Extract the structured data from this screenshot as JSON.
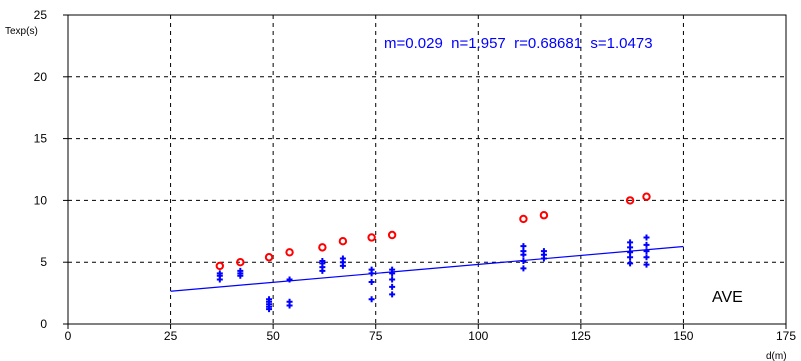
{
  "chart_data": {
    "type": "scatter",
    "title": "",
    "xlabel": "d(m)",
    "ylabel": "Texp(s)",
    "xlim": [
      0,
      175
    ],
    "ylim": [
      0,
      25
    ],
    "xticks": [
      0,
      25,
      50,
      75,
      100,
      125,
      150,
      175
    ],
    "yticks": [
      0,
      5,
      10,
      15,
      20,
      25
    ],
    "grid": "dashed, at every tick",
    "annotation": "m=0.029  n=1.957  r=0.68681  s=1.0473",
    "panel_label": "AVE",
    "colors": {
      "red_series": "#ff0000",
      "blue_series": "#0000ff",
      "fit_line": "#0000ff",
      "annotation": "#0000ff",
      "grid": "#000000"
    },
    "series": [
      {
        "marker": "circle",
        "color": "#ff0000",
        "points": [
          [
            37,
            4.7
          ],
          [
            42,
            5.0
          ],
          [
            49,
            5.4
          ],
          [
            54,
            5.8
          ],
          [
            62,
            6.2
          ],
          [
            67,
            6.7
          ],
          [
            74,
            7.0
          ],
          [
            79,
            7.2
          ],
          [
            111,
            8.5
          ],
          [
            116,
            8.8
          ],
          [
            137,
            10.0
          ],
          [
            141,
            10.3
          ]
        ]
      },
      {
        "marker": "plus",
        "color": "#0000ff",
        "points": [
          [
            37,
            3.6
          ],
          [
            37,
            3.9
          ],
          [
            37,
            4.1
          ],
          [
            42,
            3.9
          ],
          [
            42,
            4.1
          ],
          [
            42,
            4.3
          ],
          [
            49,
            1.2
          ],
          [
            49,
            1.4
          ],
          [
            49,
            1.6
          ],
          [
            49,
            1.8
          ],
          [
            49,
            2.0
          ],
          [
            54,
            1.5
          ],
          [
            54,
            1.8
          ],
          [
            54,
            3.6
          ],
          [
            62,
            4.3
          ],
          [
            62,
            4.6
          ],
          [
            62,
            4.9
          ],
          [
            62,
            5.1
          ],
          [
            67,
            4.7
          ],
          [
            67,
            5.0
          ],
          [
            67,
            5.3
          ],
          [
            74,
            2.0
          ],
          [
            74,
            3.4
          ],
          [
            74,
            4.1
          ],
          [
            74,
            4.4
          ],
          [
            79,
            2.4
          ],
          [
            79,
            3.0
          ],
          [
            79,
            3.6
          ],
          [
            79,
            4.1
          ],
          [
            79,
            4.4
          ],
          [
            111,
            4.5
          ],
          [
            111,
            5.1
          ],
          [
            111,
            5.6
          ],
          [
            111,
            5.9
          ],
          [
            111,
            6.3
          ],
          [
            116,
            5.3
          ],
          [
            116,
            5.6
          ],
          [
            116,
            5.9
          ],
          [
            137,
            4.9
          ],
          [
            137,
            5.4
          ],
          [
            137,
            5.8
          ],
          [
            137,
            6.2
          ],
          [
            137,
            6.6
          ],
          [
            141,
            4.8
          ],
          [
            141,
            5.4
          ],
          [
            141,
            5.9
          ],
          [
            141,
            6.4
          ],
          [
            141,
            7.0
          ]
        ]
      }
    ],
    "fit_line": {
      "x": [
        25,
        150
      ],
      "y": [
        2.65,
        6.27
      ]
    }
  }
}
